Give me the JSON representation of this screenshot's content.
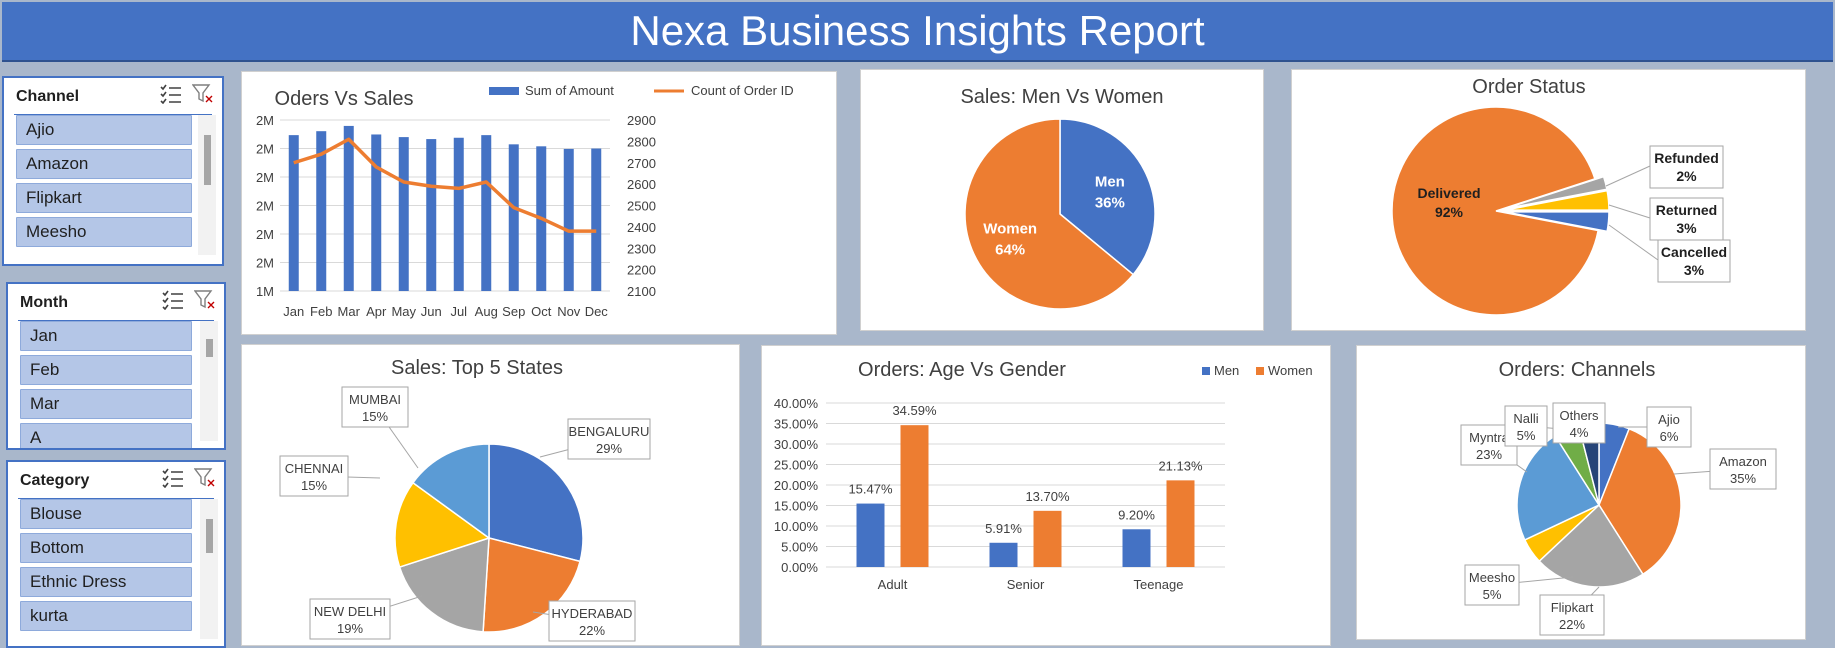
{
  "header": {
    "title": "Nexa Business Insights Report"
  },
  "slicers": [
    {
      "title": "Channel",
      "items": [
        "Ajio",
        "Amazon",
        "Flipkart",
        "Meesho"
      ]
    },
    {
      "title": "Month",
      "items": [
        "Jan",
        "Feb",
        "Mar",
        "A"
      ]
    },
    {
      "title": "Category",
      "items": [
        "Blouse",
        "Bottom",
        "Ethnic Dress",
        "kurta"
      ]
    }
  ],
  "chart_data": [
    {
      "type": "bar",
      "title": "Oders Vs Sales",
      "categories": [
        "Jan",
        "Feb",
        "Mar",
        "Apr",
        "May",
        "Jun",
        "Jul",
        "Aug",
        "Sep",
        "Oct",
        "Nov",
        "Dec"
      ],
      "series": [
        {
          "name": "Sum of Amount",
          "type": "bar",
          "axis": "left",
          "color": "#4472c4",
          "values": [
            2.185,
            2.215,
            2.255,
            2.19,
            2.17,
            2.155,
            2.165,
            2.185,
            2.115,
            2.1,
            2.08,
            2.083
          ]
        },
        {
          "name": "Count of Order ID",
          "type": "line",
          "axis": "right",
          "color": "#ed7d31",
          "values": [
            2700,
            2740,
            2810,
            2680,
            2610,
            2590,
            2580,
            2610,
            2490,
            2440,
            2380,
            2380
          ]
        }
      ],
      "y_left": {
        "ticks": [
          "1M",
          "2M",
          "2M",
          "2M",
          "2M",
          "2M",
          "2M"
        ],
        "ylim": [
          1.0,
          2.3
        ]
      },
      "y_right": {
        "ticks": [
          "2100",
          "2200",
          "2300",
          "2400",
          "2500",
          "2600",
          "2700",
          "2800",
          "2900"
        ],
        "ylim": [
          2100,
          2900
        ]
      },
      "grid": true,
      "legend": "top"
    },
    {
      "type": "pie",
      "title": "Sales: Men Vs Women",
      "slices": [
        {
          "label": "Men",
          "pct": "36%",
          "value": 36,
          "color": "#4472c4"
        },
        {
          "label": "Women",
          "pct": "64%",
          "value": 64,
          "color": "#ed7d31"
        }
      ]
    },
    {
      "type": "pie",
      "title": "Order Status",
      "slices": [
        {
          "label": "Refunded",
          "pct": "2%",
          "value": 2,
          "color": "#a5a5a5"
        },
        {
          "label": "Returned",
          "pct": "3%",
          "value": 3,
          "color": "#ffc000"
        },
        {
          "label": "Cancelled",
          "pct": "3%",
          "value": 3,
          "color": "#4472c4"
        },
        {
          "label": "Delivered",
          "pct": "92%",
          "value": 92,
          "color": "#ed7d31"
        }
      ]
    },
    {
      "type": "pie",
      "title": "Sales: Top 5 States",
      "slices": [
        {
          "label": "BENGALURU",
          "pct": "29%",
          "value": 29,
          "color": "#4472c4"
        },
        {
          "label": "HYDERABAD",
          "pct": "22%",
          "value": 22,
          "color": "#ed7d31"
        },
        {
          "label": "NEW DELHI",
          "pct": "19%",
          "value": 19,
          "color": "#a5a5a5"
        },
        {
          "label": "CHENNAI",
          "pct": "15%",
          "value": 15,
          "color": "#ffc000"
        },
        {
          "label": "MUMBAI",
          "pct": "15%",
          "value": 15,
          "color": "#5b9bd5"
        }
      ]
    },
    {
      "type": "bar",
      "title": "Orders: Age Vs Gender",
      "categories": [
        "Adult",
        "Senior",
        "Teenage"
      ],
      "series": [
        {
          "name": "Men",
          "color": "#4472c4",
          "values": [
            15.47,
            5.91,
            9.2
          ],
          "labels": [
            "15.47%",
            "5.91%",
            "9.20%"
          ]
        },
        {
          "name": "Women",
          "color": "#ed7d31",
          "values": [
            34.59,
            13.7,
            21.13
          ],
          "labels": [
            "34.59%",
            "13.70%",
            "21.13%"
          ]
        }
      ],
      "y_ticks": [
        "0.00%",
        "5.00%",
        "10.00%",
        "15.00%",
        "20.00%",
        "25.00%",
        "30.00%",
        "35.00%",
        "40.00%"
      ],
      "ylim": [
        0,
        40
      ],
      "grid": true,
      "legend": "top-right"
    },
    {
      "type": "pie",
      "title": "Orders: Channels",
      "slices": [
        {
          "label": "Ajio",
          "pct": "6%",
          "value": 6,
          "color": "#4472c4"
        },
        {
          "label": "Amazon",
          "pct": "35%",
          "value": 35,
          "color": "#ed7d31"
        },
        {
          "label": "Flipkart",
          "pct": "22%",
          "value": 22,
          "color": "#a5a5a5"
        },
        {
          "label": "Meesho",
          "pct": "5%",
          "value": 5,
          "color": "#ffc000"
        },
        {
          "label": "Myntra",
          "pct": "23%",
          "value": 23,
          "color": "#5b9bd5"
        },
        {
          "label": "Nalli",
          "pct": "5%",
          "value": 5,
          "color": "#70ad47"
        },
        {
          "label": "Others",
          "pct": "4%",
          "value": 4,
          "color": "#264478"
        }
      ]
    }
  ]
}
